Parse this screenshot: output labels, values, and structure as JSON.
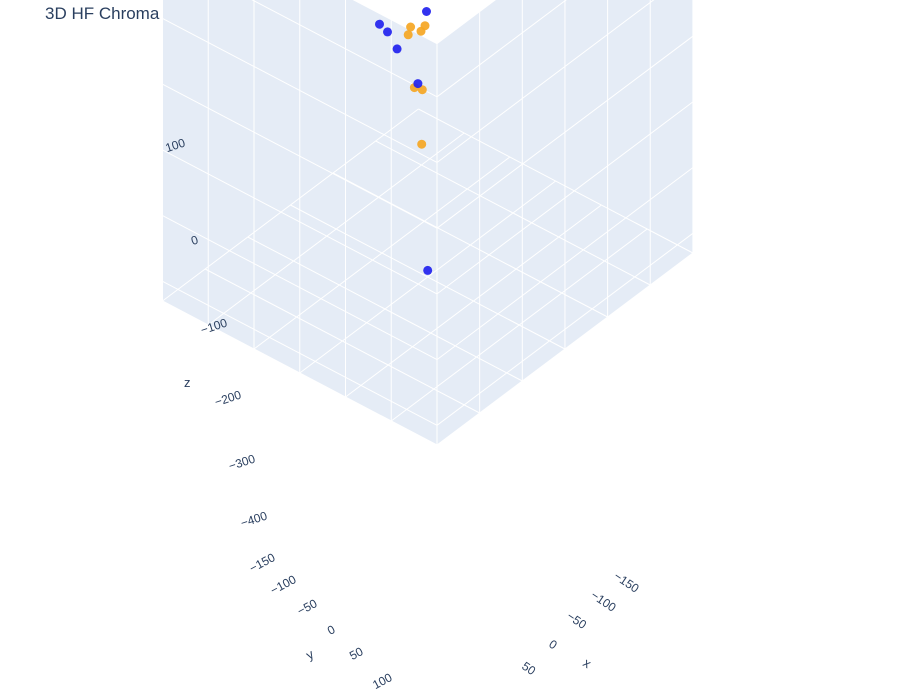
{
  "chart_data": {
    "type": "scatter3d",
    "title": "3D HF Chroma Vector Store Visualization",
    "axes": {
      "x": {
        "title": "x",
        "ticks": [
          "−150",
          "−100",
          "−50",
          "0",
          "50"
        ]
      },
      "y": {
        "title": "y",
        "ticks": [
          "−150",
          "−100",
          "−50",
          "0",
          "50",
          "100"
        ]
      },
      "z": {
        "title": "z",
        "ticks": [
          "100",
          "0",
          "−100",
          "−200",
          "−300",
          "−400"
        ]
      }
    },
    "colors": {
      "group_a": "#2222ee",
      "group_b": "#f5a623",
      "wall": "#e5ecf6",
      "grid": "#ffffff"
    },
    "points": [
      {
        "group": "group_b",
        "x": -60,
        "y": -120,
        "z": 150
      },
      {
        "group": "group_a",
        "x": -30,
        "y": 40,
        "z": 120
      },
      {
        "group": "group_a",
        "x": -10,
        "y": 15,
        "z": 110
      },
      {
        "group": "group_a",
        "x": 40,
        "y": 90,
        "z": 60
      },
      {
        "group": "group_a",
        "x": -80,
        "y": -60,
        "z": 55
      },
      {
        "group": "group_a",
        "x": -120,
        "y": -50,
        "z": 50
      },
      {
        "group": "group_a",
        "x": -60,
        "y": -100,
        "z": 45
      },
      {
        "group": "group_a",
        "x": -140,
        "y": -40,
        "z": 10
      },
      {
        "group": "group_b",
        "x": 30,
        "y": 40,
        "z": 5
      },
      {
        "group": "group_b",
        "x": 25,
        "y": 30,
        "z": 0
      },
      {
        "group": "group_a",
        "x": -60,
        "y": -60,
        "z": 0
      },
      {
        "group": "group_a",
        "x": -50,
        "y": -70,
        "z": -10
      },
      {
        "group": "group_b",
        "x": 60,
        "y": 80,
        "z": -20
      },
      {
        "group": "group_b",
        "x": 0,
        "y": 20,
        "z": -30
      },
      {
        "group": "group_b",
        "x": 50,
        "y": 60,
        "z": -50
      },
      {
        "group": "group_a",
        "x": -20,
        "y": -20,
        "z": -60
      },
      {
        "group": "group_a",
        "x": -140,
        "y": -90,
        "z": -110
      },
      {
        "group": "group_b",
        "x": -40,
        "y": -20,
        "z": -110
      },
      {
        "group": "group_a",
        "x": -90,
        "y": -40,
        "z": -150
      },
      {
        "group": "group_b",
        "x": 40,
        "y": 50,
        "z": -150
      },
      {
        "group": "group_a",
        "x": -20,
        "y": -10,
        "z": -160
      },
      {
        "group": "group_a",
        "x": -80,
        "y": -50,
        "z": -190
      },
      {
        "group": "group_a",
        "x": 0,
        "y": 0,
        "z": -420
      }
    ]
  }
}
